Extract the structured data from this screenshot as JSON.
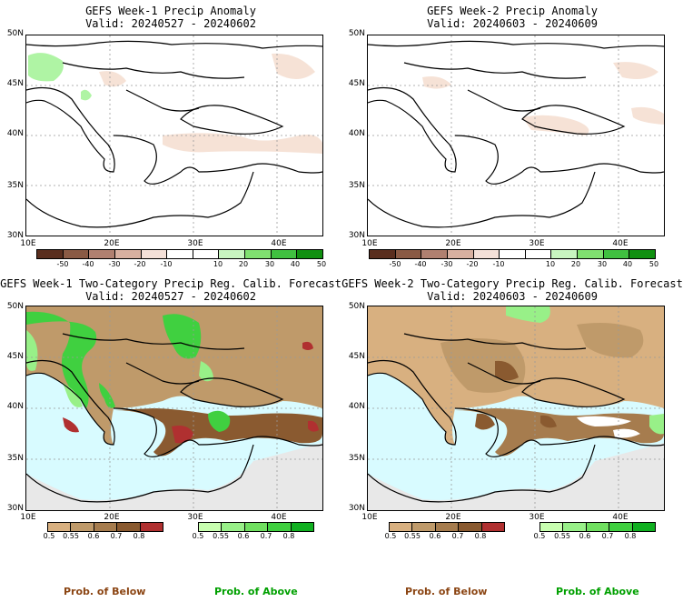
{
  "panels": [
    {
      "title": "GEFS Week-1 Precip Anomaly",
      "valid": "Valid: 20240527 - 20240602"
    },
    {
      "title": "GEFS Week-2 Precip Anomaly",
      "valid": "Valid: 20240603 - 20240609"
    },
    {
      "title": "GEFS Week-1 Two-Category Precip Reg. Calib. Forecast",
      "valid": "Valid: 20240527 - 20240602"
    },
    {
      "title": "GEFS Week-2 Two-Category Precip Reg. Calib. Forecast",
      "valid": "Valid: 20240603 - 20240609"
    }
  ],
  "axes": {
    "lat_labels": [
      "50N",
      "45N",
      "40N",
      "35N",
      "30N"
    ],
    "lon_labels": [
      "10E",
      "20E",
      "30E",
      "40E"
    ]
  },
  "anomaly_colorbar": {
    "labels": [
      "-50",
      "-40",
      "-30",
      "-20",
      "-10",
      "10",
      "20",
      "30",
      "40",
      "50"
    ],
    "colors": [
      "#5a2e1e",
      "#8a5a44",
      "#b08070",
      "#d8b0a0",
      "#f4e0d8",
      "#ffffff",
      "#ffffff",
      "#c8f5c0",
      "#80e070",
      "#40c040",
      "#109010"
    ]
  },
  "prob_below_colorbar": {
    "labels": [
      "0.5",
      "0.55",
      "0.6",
      "0.7",
      "0.8"
    ],
    "colors": [
      "#d8b080",
      "#bf9a6a",
      "#a67c4e",
      "#8a5a30",
      "#b03030"
    ]
  },
  "prob_above_colorbar": {
    "labels": [
      "0.5",
      "0.55",
      "0.6",
      "0.7",
      "0.8"
    ],
    "colors": [
      "#c8ffb0",
      "#98f088",
      "#70e060",
      "#40d040",
      "#10b020"
    ]
  },
  "legend": {
    "below": "Prob. of Below",
    "above": "Prob. of Above"
  },
  "colors": {
    "sea": "#d8fbff",
    "land_mask": "#e8e8e8",
    "below_label": "#8b4513",
    "above_label": "#00a000"
  }
}
